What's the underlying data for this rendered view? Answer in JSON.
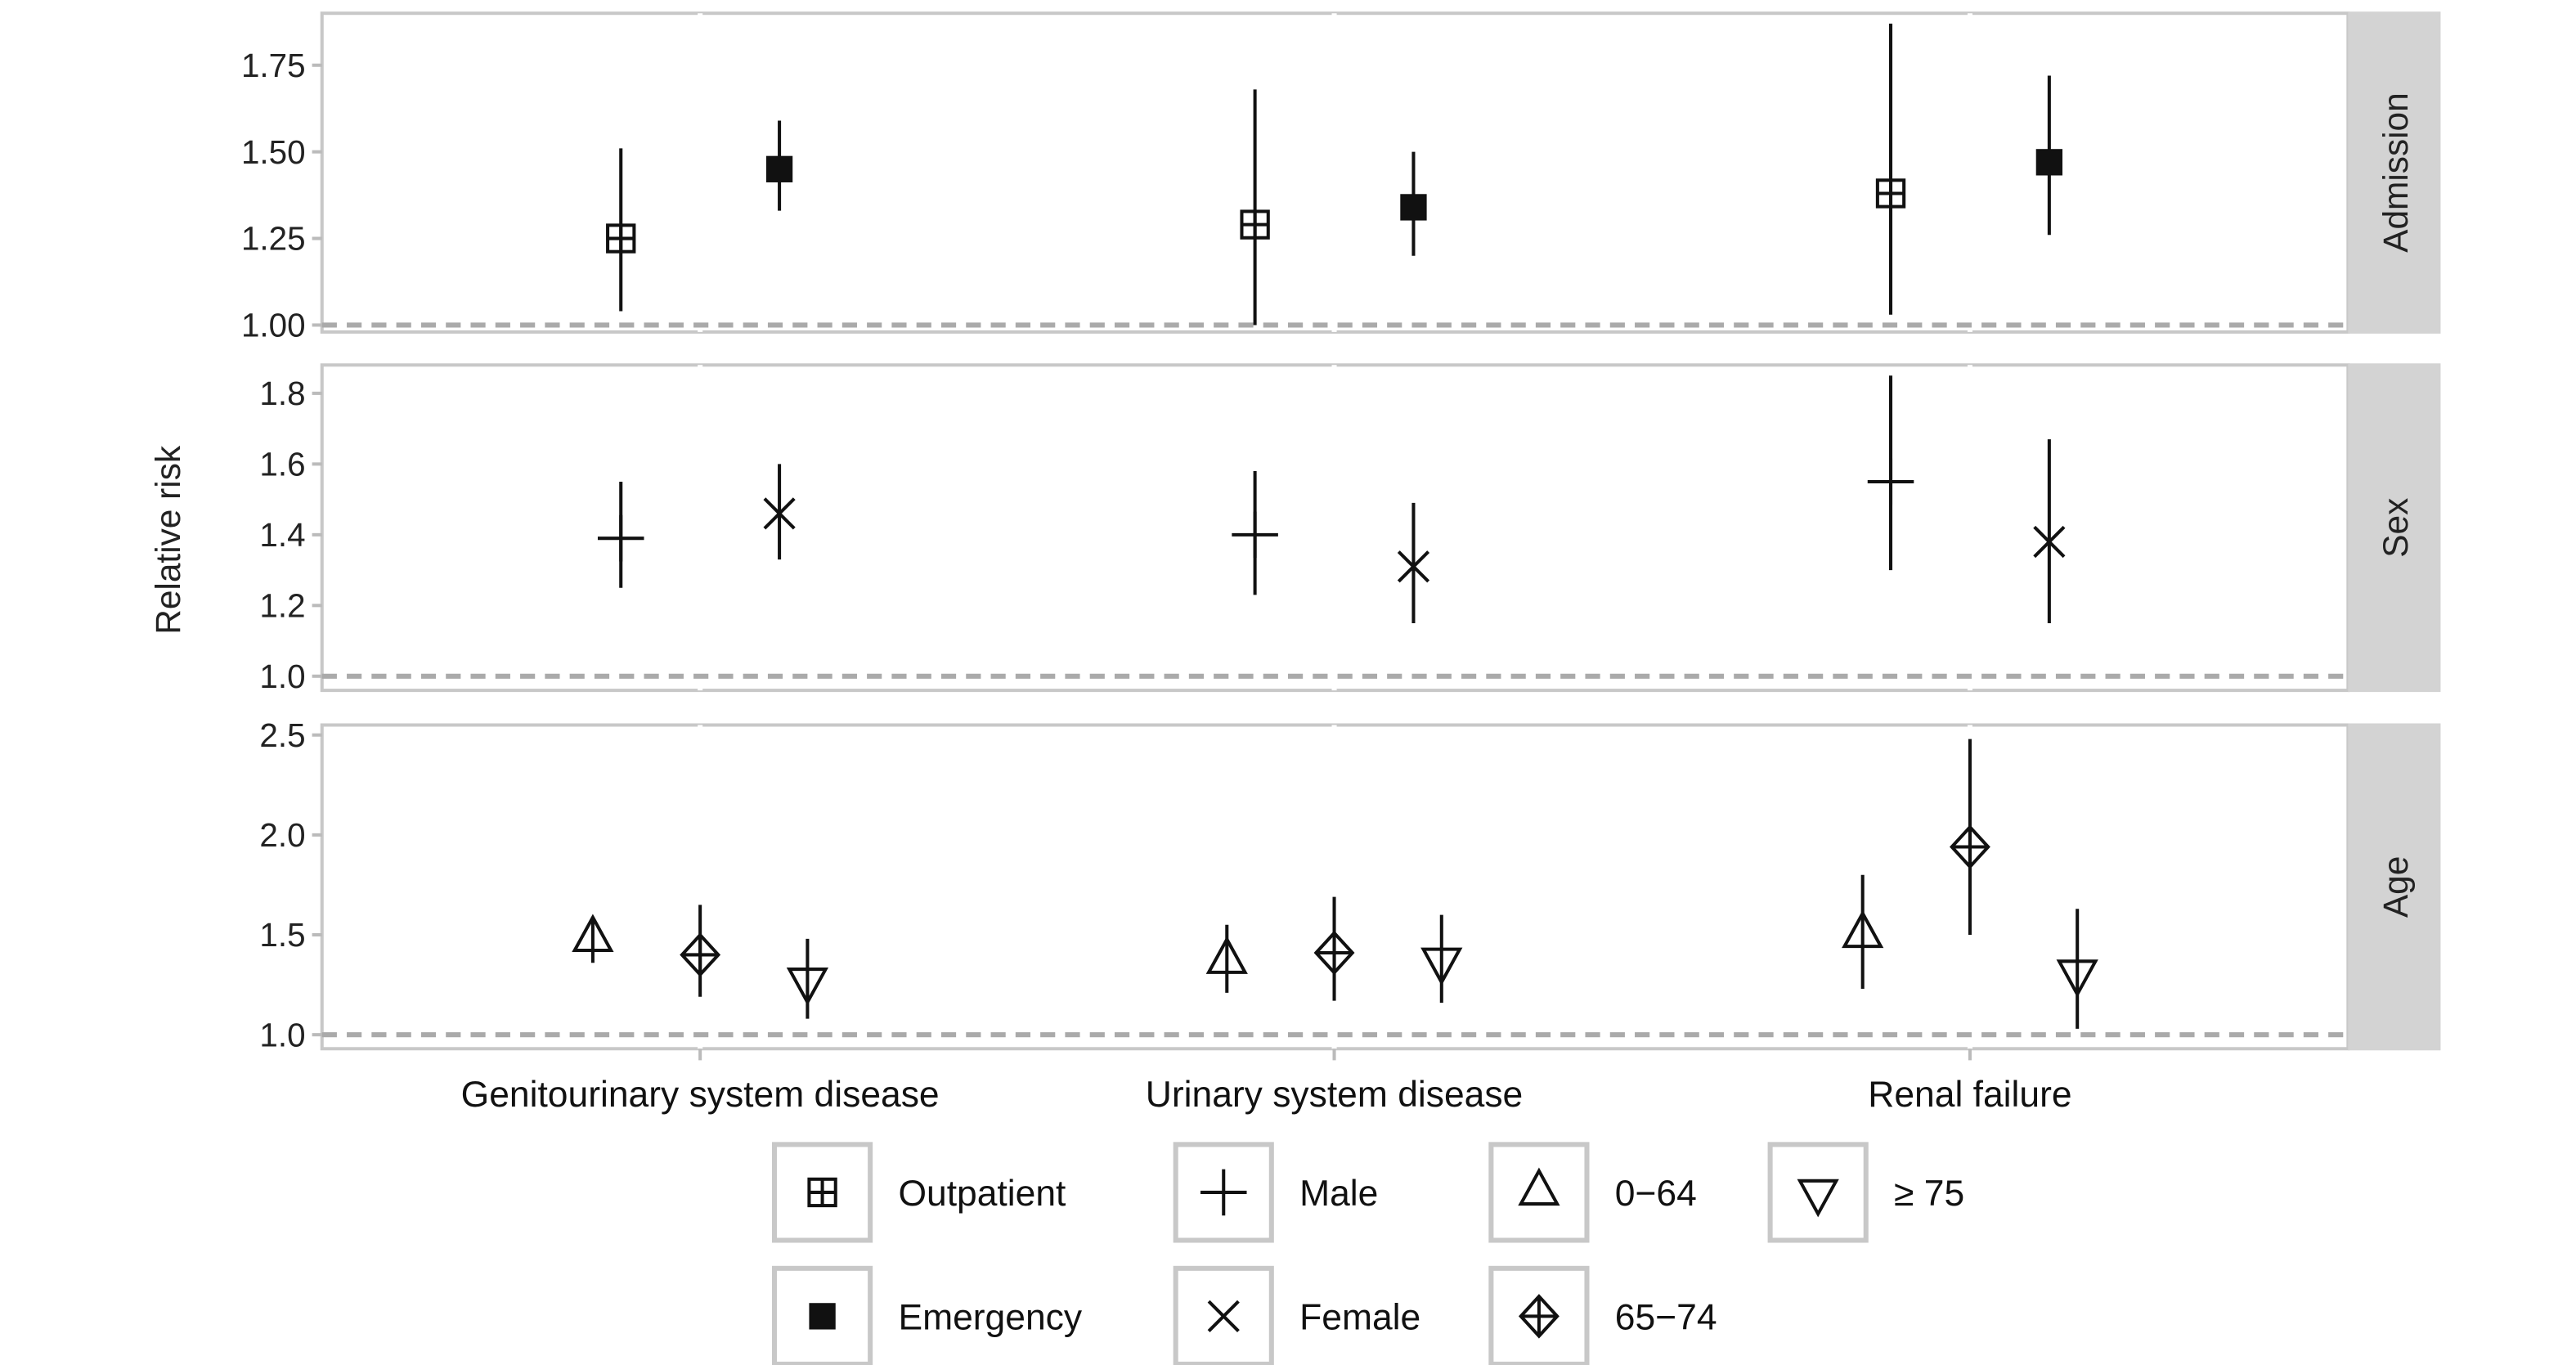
{
  "chart_data": {
    "type": "scatter",
    "subtype": "point-range faceted",
    "ylabel": "Relative risk",
    "categories": [
      "Genitourinary system disease",
      "Urinary system disease",
      "Renal failure"
    ],
    "reference_line": 1.0,
    "grid": true,
    "legend_placement": "bottom",
    "panels": [
      {
        "strip": "Admission",
        "ylim": [
          0.98,
          1.9
        ],
        "yticks": [
          1.0,
          1.25,
          1.5,
          1.75
        ],
        "ytick_labels": [
          "1.00",
          "1.25",
          "1.50",
          "1.75"
        ],
        "series": [
          {
            "name": "Outpatient",
            "shape": "square-plus",
            "points": [
              {
                "category": "Genitourinary system disease",
                "rr": 1.25,
                "lo": 1.04,
                "hi": 1.51
              },
              {
                "category": "Urinary system disease",
                "rr": 1.29,
                "lo": 1.0,
                "hi": 1.68
              },
              {
                "category": "Renal failure",
                "rr": 1.38,
                "lo": 1.03,
                "hi": 1.87
              }
            ]
          },
          {
            "name": "Emergency",
            "shape": "filled-square",
            "points": [
              {
                "category": "Genitourinary system disease",
                "rr": 1.45,
                "lo": 1.33,
                "hi": 1.59
              },
              {
                "category": "Urinary system disease",
                "rr": 1.34,
                "lo": 1.2,
                "hi": 1.5
              },
              {
                "category": "Renal failure",
                "rr": 1.47,
                "lo": 1.26,
                "hi": 1.72
              }
            ]
          }
        ]
      },
      {
        "strip": "Sex",
        "ylim": [
          0.96,
          1.88
        ],
        "yticks": [
          1.0,
          1.2,
          1.4,
          1.6,
          1.8
        ],
        "ytick_labels": [
          "1.0",
          "1.2",
          "1.4",
          "1.6",
          "1.8"
        ],
        "series": [
          {
            "name": "Male",
            "shape": "plus",
            "points": [
              {
                "category": "Genitourinary system disease",
                "rr": 1.39,
                "lo": 1.25,
                "hi": 1.55
              },
              {
                "category": "Urinary system disease",
                "rr": 1.4,
                "lo": 1.23,
                "hi": 1.58
              },
              {
                "category": "Renal failure",
                "rr": 1.55,
                "lo": 1.3,
                "hi": 1.85
              }
            ]
          },
          {
            "name": "Female",
            "shape": "cross",
            "points": [
              {
                "category": "Genitourinary system disease",
                "rr": 1.46,
                "lo": 1.33,
                "hi": 1.6
              },
              {
                "category": "Urinary system disease",
                "rr": 1.31,
                "lo": 1.15,
                "hi": 1.49
              },
              {
                "category": "Renal failure",
                "rr": 1.38,
                "lo": 1.15,
                "hi": 1.67
              }
            ]
          }
        ]
      },
      {
        "strip": "Age",
        "ylim": [
          0.93,
          2.55
        ],
        "yticks": [
          1.0,
          1.5,
          2.0,
          2.5
        ],
        "ytick_labels": [
          "1.0",
          "1.5",
          "2.0",
          "2.5"
        ],
        "series": [
          {
            "name": "0−64",
            "shape": "triangle-up",
            "points": [
              {
                "category": "Genitourinary system disease",
                "rr": 1.48,
                "lo": 1.36,
                "hi": 1.58
              },
              {
                "category": "Urinary system disease",
                "rr": 1.37,
                "lo": 1.21,
                "hi": 1.55
              },
              {
                "category": "Renal failure",
                "rr": 1.5,
                "lo": 1.23,
                "hi": 1.8
              }
            ]
          },
          {
            "name": "65−74",
            "shape": "diamond-plus",
            "points": [
              {
                "category": "Genitourinary system disease",
                "rr": 1.4,
                "lo": 1.19,
                "hi": 1.65
              },
              {
                "category": "Urinary system disease",
                "rr": 1.41,
                "lo": 1.17,
                "hi": 1.69
              },
              {
                "category": "Renal failure",
                "rr": 1.94,
                "lo": 1.5,
                "hi": 2.48
              }
            ]
          },
          {
            "name": "≥ 75",
            "shape": "triangle-down",
            "points": [
              {
                "category": "Genitourinary system disease",
                "rr": 1.27,
                "lo": 1.08,
                "hi": 1.48
              },
              {
                "category": "Urinary system disease",
                "rr": 1.37,
                "lo": 1.16,
                "hi": 1.6
              },
              {
                "category": "Renal failure",
                "rr": 1.31,
                "lo": 1.03,
                "hi": 1.63
              }
            ]
          }
        ]
      }
    ],
    "legend": [
      {
        "label": "Outpatient",
        "shape": "square-plus"
      },
      {
        "label": "Male",
        "shape": "plus"
      },
      {
        "label": "0−64",
        "shape": "triangle-up"
      },
      {
        "label": "≥ 75",
        "shape": "triangle-down"
      },
      {
        "label": "Emergency",
        "shape": "filled-square"
      },
      {
        "label": "Female",
        "shape": "cross"
      },
      {
        "label": "65−74",
        "shape": "diamond-plus"
      }
    ],
    "colors": {
      "marks": "#111111",
      "reference_line": "#aaaaaa",
      "strip_bg": "#d3d3d3",
      "grid": "#dddddd"
    }
  }
}
